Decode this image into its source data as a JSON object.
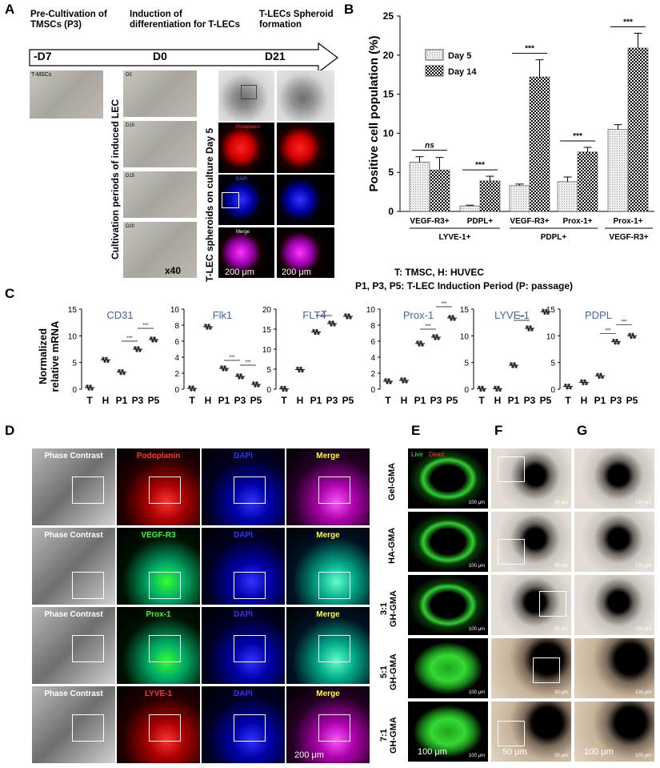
{
  "panels": {
    "A": "A",
    "B": "B",
    "C": "C",
    "D": "D",
    "E": "E",
    "F": "F",
    "G": "G"
  },
  "panelA": {
    "stages": [
      "Pre-Cultivation of\nTMSCs (P3)",
      "Induction of\ndifferentiation for T-LECs",
      "T-LECs Spheroid\nformation"
    ],
    "timepoints": [
      "-D7",
      "D0",
      "D21"
    ],
    "tmsc_label": "T-MSCs",
    "days": [
      "D5",
      "D10",
      "D15",
      "D20"
    ],
    "vertical_cult": "Cultivation periods of induced LEC",
    "vertical_spheroid": "T-LEC spheroids on culture Day 5",
    "mag": "x40",
    "stains": [
      "Podoplanin",
      "DAPI",
      "Merge"
    ],
    "scale1": "200 μm",
    "scale2": "200 μm"
  },
  "panelB": {
    "ylabel": "Positive cell population (%)",
    "legend": [
      "Day 5",
      "Day 14"
    ],
    "sig": [
      "ns",
      "***",
      "***",
      "***",
      "***"
    ],
    "groups": [
      "LYVE-1+",
      "PDPL+",
      "VEGF-R3+"
    ],
    "yticks": [
      "0",
      "5",
      "10",
      "15",
      "20",
      "25"
    ]
  },
  "chart_data": {
    "type": "bar",
    "categories": [
      "VEGF-R3+",
      "PDPL+",
      "VEGF-R3+",
      "Prox-1+",
      "Prox-1+"
    ],
    "series": [
      {
        "name": "Day 5",
        "values": [
          6.3,
          0.7,
          3.3,
          3.8,
          10.5
        ]
      },
      {
        "name": "Day 14",
        "values": [
          5.3,
          3.9,
          17.2,
          7.6,
          20.9
        ]
      }
    ],
    "errors": [
      [
        0.7,
        0.1,
        0.2,
        0.6,
        0.6
      ],
      [
        1.6,
        0.6,
        2.2,
        0.6,
        1.9
      ]
    ],
    "ylim": [
      0,
      25
    ]
  },
  "panelC": {
    "ylabel": "Normalized\nrelative mRNA",
    "note1": "T: TMSC, H: HUVEC",
    "note2": "P1, P3, P5: T-LEC Induction Period (P: passage)",
    "xcats": [
      "T",
      "H",
      "P1",
      "P3",
      "P5"
    ],
    "plots": [
      {
        "title": "CD31",
        "yticks": [
          "0",
          "5",
          "10",
          "15"
        ],
        "max": 15,
        "vals": [
          0.3,
          5.5,
          3.2,
          7.5,
          9.3
        ]
      },
      {
        "title": "Flk1",
        "yticks": [
          "0",
          "2",
          "4",
          "6",
          "8",
          "10"
        ],
        "max": 10,
        "vals": [
          0.1,
          7.8,
          2.6,
          1.6,
          0.6
        ]
      },
      {
        "title": "FLT4",
        "yticks": [
          "0",
          "5",
          "10",
          "15",
          "20"
        ],
        "max": 20,
        "vals": [
          0.1,
          4.9,
          14.3,
          16.4,
          18.2
        ]
      },
      {
        "title": "Prox-1",
        "yticks": [
          "0",
          "2",
          "4",
          "6",
          "8",
          "10"
        ],
        "max": 10,
        "vals": [
          1.0,
          1.1,
          5.7,
          6.5,
          8.9
        ]
      },
      {
        "title": "LYVE-1",
        "yticks": [
          "0",
          "5",
          "10",
          "15"
        ],
        "max": 15,
        "vals": [
          0.1,
          0.1,
          4.5,
          11.4,
          14.5
        ]
      },
      {
        "title": "PDPL",
        "yticks": [
          "0",
          "5",
          "10",
          "15"
        ],
        "max": 15,
        "vals": [
          0.5,
          1.3,
          2.5,
          8.9,
          10.0
        ]
      }
    ]
  },
  "panelD": {
    "rows": [
      [
        "Phase Contrast",
        "Podoplanin",
        "DAPI",
        "Merge"
      ],
      [
        "Phase Contrast",
        "VEGF-R3",
        "DAPI",
        "Merge"
      ],
      [
        "Phase Contrast",
        "Prox-1",
        "DAPI",
        "Merge"
      ],
      [
        "Phase Contrast",
        "LYVE-1",
        "DAPI",
        "Merge"
      ]
    ],
    "scale": "200 μm"
  },
  "panelEFG": {
    "live": "Live",
    "dead": "Dead",
    "rows": [
      "Gel-GMA",
      "HA-GMA",
      "3:1\nGH-GMA",
      "5:1\nGH-GMA",
      "7:1\nGH-GMA"
    ],
    "scaleE": "100 μm",
    "scaleF": "50 μm",
    "scaleG": "100 μm",
    "smallE": "100 μm",
    "smallF": "50 μm",
    "smallG": "100 μm"
  }
}
